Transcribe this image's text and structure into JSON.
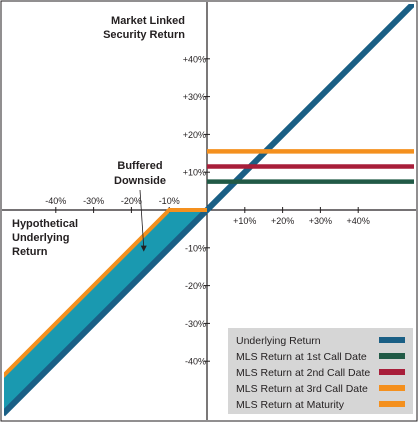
{
  "chart_data": {
    "type": "line",
    "x_axis_label_lines": [
      "Hypothetical",
      "Underlying",
      "Return"
    ],
    "y_axis_label_lines": [
      "Market Linked",
      "Security Return"
    ],
    "x_ticks": [
      -40,
      -30,
      -20,
      -10,
      10,
      20,
      30,
      40
    ],
    "x_tick_labels": [
      "-40%",
      "-30%",
      "-20%",
      "-10%",
      "+10%",
      "+20%",
      "+30%",
      "+40%"
    ],
    "y_ticks": [
      40,
      30,
      20,
      10,
      -10,
      -20,
      -30,
      -40
    ],
    "y_tick_labels": [
      "+40%",
      "+30%",
      "+20%",
      "+10%",
      "-10%",
      "-20%",
      "-30%",
      "-40%"
    ],
    "xlim": [
      -54,
      55
    ],
    "ylim": [
      -55,
      55
    ],
    "grid": false,
    "legend_position": "bottom-right",
    "annotation": {
      "lines": [
        "Buffered",
        "Downside"
      ],
      "arrow_to": {
        "x": -17,
        "y": -11
      }
    },
    "buffer_region": {
      "color": "#1a99b0",
      "polygon": [
        [
          -54,
          -44
        ],
        [
          -10,
          0
        ],
        [
          0,
          0
        ],
        [
          -54,
          -54
        ]
      ]
    },
    "series": [
      {
        "name": "Underlying Return",
        "color": "#1a5f85",
        "width": 6,
        "points": [
          [
            -54,
            -54
          ],
          [
            55,
            55
          ]
        ]
      },
      {
        "name": "MLS Return at 1st Call Date",
        "color": "#215a46",
        "width": 4.5,
        "points": [
          [
            0,
            7.5
          ],
          [
            55,
            7.5
          ]
        ]
      },
      {
        "name": "MLS Return at 2nd Call Date",
        "color": "#a81e3a",
        "width": 4.5,
        "points": [
          [
            0,
            11.5
          ],
          [
            55,
            11.5
          ]
        ]
      },
      {
        "name": "MLS Return at 3rd Call Date",
        "color": "#f4901e",
        "width": 4.5,
        "points": [
          [
            0,
            15.5
          ],
          [
            55,
            15.5
          ]
        ]
      },
      {
        "name": "MLS Return at Maturity",
        "color": "#f4901e",
        "width": 4,
        "points": [
          [
            -54,
            -44
          ],
          [
            -10,
            0
          ],
          [
            0,
            0
          ]
        ]
      }
    ]
  }
}
